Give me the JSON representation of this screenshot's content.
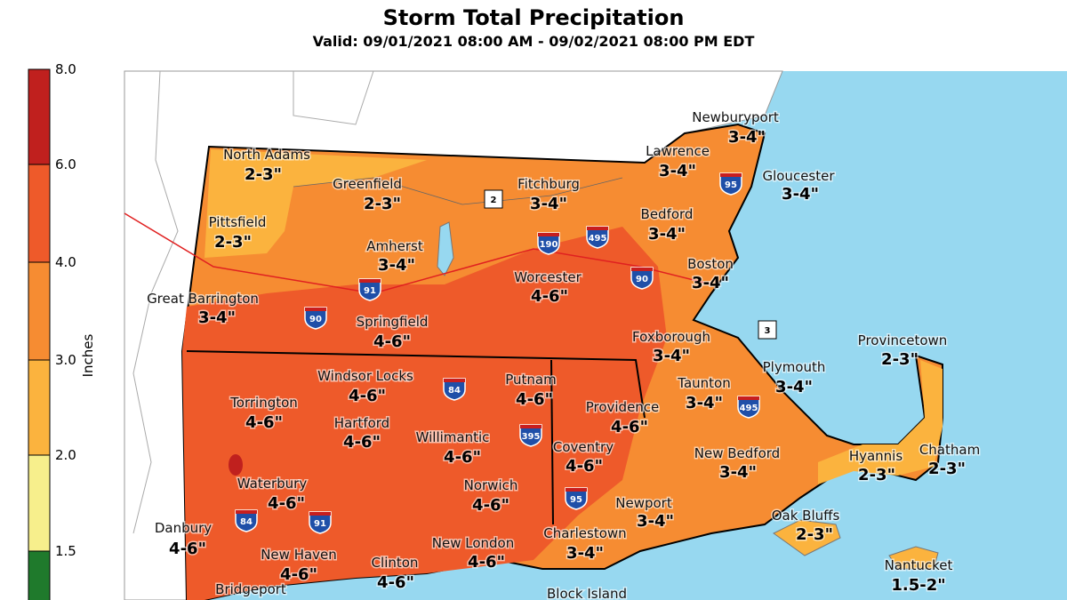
{
  "header": {
    "title": "Storm Total Precipitation",
    "subtitle": "Valid: 09/01/2021 08:00 AM - 09/02/2021 08:00 PM EDT"
  },
  "legend": {
    "title": "Inches",
    "ticks": [
      "8.0",
      "6.0",
      "4.0",
      "3.0",
      "2.0",
      "1.5"
    ]
  },
  "cities": [
    {
      "name": "North Adams",
      "amount": "2-3\""
    },
    {
      "name": "Greenfield",
      "amount": "2-3\""
    },
    {
      "name": "Fitchburg",
      "amount": "3-4\""
    },
    {
      "name": "Newburyport",
      "amount": "3-4\""
    },
    {
      "name": "Lawrence",
      "amount": "3-4\""
    },
    {
      "name": "Gloucester",
      "amount": "3-4\""
    },
    {
      "name": "Pittsfield",
      "amount": "2-3\""
    },
    {
      "name": "Amherst",
      "amount": "3-4\""
    },
    {
      "name": "Bedford",
      "amount": "3-4\""
    },
    {
      "name": "Boston",
      "amount": "3-4\""
    },
    {
      "name": "Worcester",
      "amount": "4-6\""
    },
    {
      "name": "Great Barrington",
      "amount": "3-4\""
    },
    {
      "name": "Springfield",
      "amount": "4-6\""
    },
    {
      "name": "Foxborough",
      "amount": "3-4\""
    },
    {
      "name": "Provincetown",
      "amount": "2-3\""
    },
    {
      "name": "Plymouth",
      "amount": "3-4\""
    },
    {
      "name": "Windsor Locks",
      "amount": "4-6\""
    },
    {
      "name": "Putnam",
      "amount": "4-6\""
    },
    {
      "name": "Taunton",
      "amount": "3-4\""
    },
    {
      "name": "Torrington",
      "amount": "4-6\""
    },
    {
      "name": "Providence",
      "amount": "4-6\""
    },
    {
      "name": "Hartford",
      "amount": "4-6\""
    },
    {
      "name": "Willimantic",
      "amount": "4-6\""
    },
    {
      "name": "Coventry",
      "amount": "4-6\""
    },
    {
      "name": "New Bedford",
      "amount": "3-4\""
    },
    {
      "name": "Hyannis",
      "amount": "2-3\""
    },
    {
      "name": "Chatham",
      "amount": "2-3\""
    },
    {
      "name": "Waterbury",
      "amount": "4-6\""
    },
    {
      "name": "Norwich",
      "amount": "4-6\""
    },
    {
      "name": "Newport",
      "amount": "3-4\""
    },
    {
      "name": "Oak Bluffs",
      "amount": "2-3\""
    },
    {
      "name": "Danbury",
      "amount": "4-6\""
    },
    {
      "name": "Charlestown",
      "amount": "3-4\""
    },
    {
      "name": "New London",
      "amount": "4-6\""
    },
    {
      "name": "New Haven",
      "amount": "4-6\""
    },
    {
      "name": "Clinton",
      "amount": "4-6\""
    },
    {
      "name": "Nantucket",
      "amount": "1.5-2\""
    },
    {
      "name": "Bridgeport"
    },
    {
      "name": "Block Island"
    }
  ],
  "highways": [
    "2",
    "190",
    "495",
    "95",
    "91",
    "90",
    "90",
    "3",
    "84",
    "395",
    "495",
    "95",
    "84",
    "91"
  ]
}
